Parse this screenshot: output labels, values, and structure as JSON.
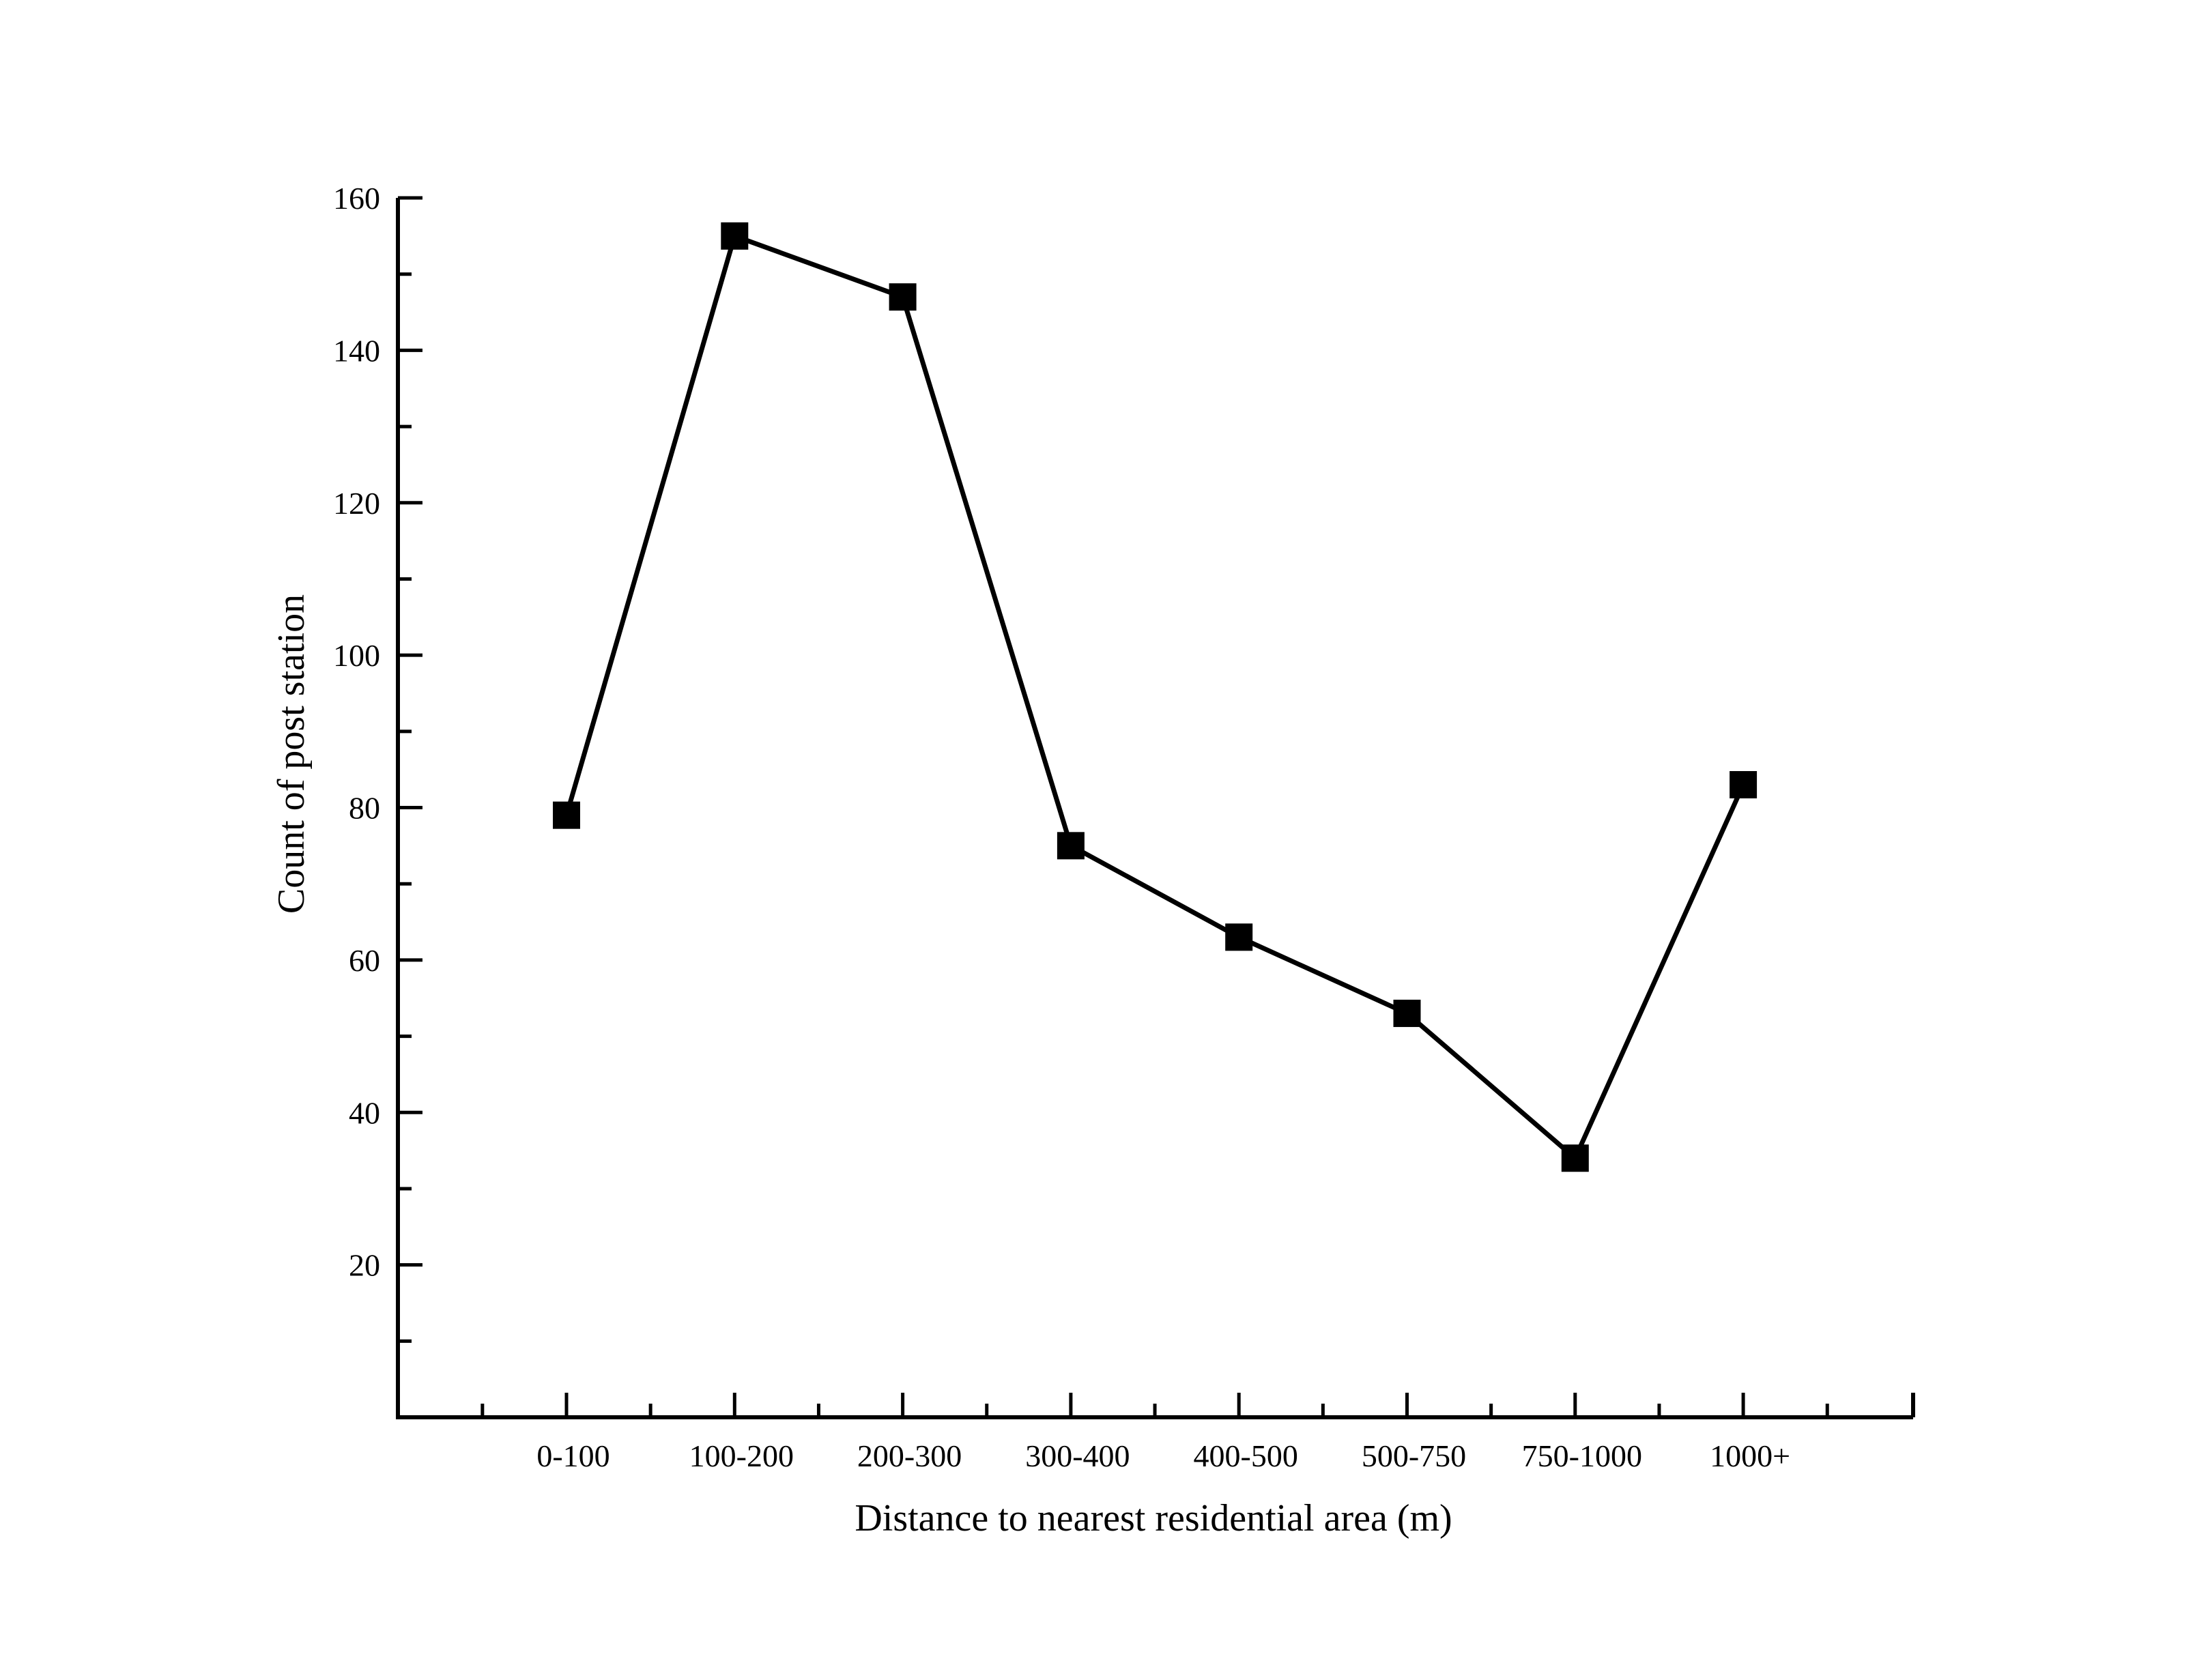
{
  "chart_data": {
    "type": "line",
    "title": "",
    "xlabel": "Distance to nearest residential area (m)",
    "ylabel": "Count of post station",
    "categories": [
      "0-100",
      "100-200",
      "200-300",
      "300-400",
      "400-500",
      "500-750",
      "750-1000",
      "1000+"
    ],
    "series": [
      {
        "values": [
          79,
          155,
          147,
          75,
          63,
          53,
          34,
          83
        ]
      }
    ],
    "ylim": [
      0,
      160
    ],
    "yticks": [
      "20",
      "40",
      "60",
      "80",
      "100",
      "120",
      "140",
      "160"
    ],
    "marker": "square",
    "line_color": "#000000",
    "grid": false,
    "legend": "none"
  }
}
